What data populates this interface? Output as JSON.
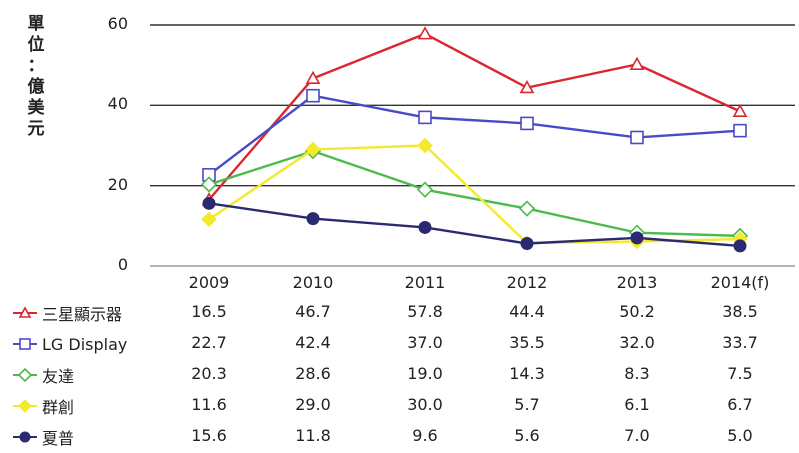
{
  "chart_data": {
    "type": "line",
    "ylabel": "單位：億美元",
    "ylabel_chars": [
      "單",
      "位",
      "：",
      "億",
      "美",
      "元"
    ],
    "ylim": [
      0,
      60
    ],
    "yticks": [
      "0",
      "20",
      "40",
      "60"
    ],
    "categories": [
      "2009",
      "2010",
      "2011",
      "2012",
      "2013",
      "2014(f)"
    ],
    "grid": "horizontal",
    "legend": "table-below",
    "series": [
      {
        "name": "三星顯示器",
        "color": "#d9272e",
        "marker": "triangle",
        "values": [
          16.5,
          46.7,
          57.8,
          44.4,
          50.2,
          38.5
        ],
        "labels": [
          "16.5",
          "46.7",
          "57.8",
          "44.4",
          "50.2",
          "38.5"
        ]
      },
      {
        "name": "LG Display",
        "color": "#4a4ac8",
        "marker": "square",
        "values": [
          22.7,
          42.4,
          37.0,
          35.5,
          32.0,
          33.7
        ],
        "labels": [
          "22.7",
          "42.4",
          "37.0",
          "35.5",
          "32.0",
          "33.7"
        ]
      },
      {
        "name": "友達",
        "color": "#4dba4d",
        "marker": "diamond",
        "values": [
          20.3,
          28.6,
          19.0,
          14.3,
          8.3,
          7.5
        ],
        "labels": [
          "20.3",
          "28.6",
          "19.0",
          "14.3",
          "8.3",
          "7.5"
        ]
      },
      {
        "name": "群創",
        "color": "#f2ea2a",
        "marker": "diamond-filled",
        "values": [
          11.6,
          29.0,
          30.0,
          5.7,
          6.1,
          6.7
        ],
        "labels": [
          "11.6",
          "29.0",
          "30.0",
          "5.7",
          "6.1",
          "6.7"
        ]
      },
      {
        "name": "夏普",
        "color": "#2a2a72",
        "marker": "circle-filled",
        "values": [
          15.6,
          11.8,
          9.6,
          5.6,
          7.0,
          5.0
        ],
        "labels": [
          "15.6",
          "11.8",
          "9.6",
          "5.6",
          "7.0",
          "5.0"
        ]
      }
    ]
  }
}
